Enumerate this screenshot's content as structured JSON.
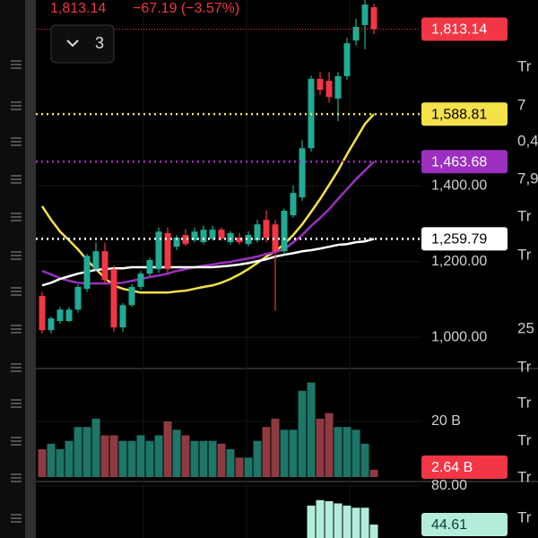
{
  "header": {
    "price": "1,813.14",
    "change": "−67.19 (−3.57%)"
  },
  "button": {
    "label": "3"
  },
  "side_labels": [
    "Tr",
    "7",
    "0,4",
    "7,9",
    "Tr",
    "Tr",
    "25",
    "Tr",
    "Tr",
    "Tr",
    "Tr",
    "Tr"
  ],
  "chart_data": [
    {
      "type": "candlestick",
      "up_color": "#22ab94",
      "down_color": "#f23645",
      "ylim": [
        920,
        1890
      ],
      "yticks": [
        {
          "value": 1000,
          "label": "1,000.00"
        },
        {
          "value": 1200,
          "label": "1,200.00"
        },
        {
          "value": 1400,
          "label": "1,400.00"
        }
      ],
      "open": [
        1109,
        1019,
        1043,
        1043,
        1073,
        1128,
        1180,
        1227,
        1180,
        1026,
        1085,
        1133,
        1168,
        1180,
        1275,
        1239,
        1270,
        1256,
        1251,
        1260,
        1284,
        1251,
        1263,
        1246,
        1256,
        1310,
        1298,
        1227,
        1322,
        1369,
        1499,
        1682,
        1677,
        1630,
        1689,
        1783,
        1824,
        1871
      ],
      "high": [
        1120,
        1055,
        1080,
        1080,
        1140,
        1220,
        1250,
        1250,
        1190,
        1090,
        1140,
        1175,
        1210,
        1290,
        1290,
        1270,
        1285,
        1290,
        1295,
        1295,
        1290,
        1280,
        1275,
        1280,
        1310,
        1335,
        1310,
        1340,
        1400,
        1520,
        1690,
        1700,
        1700,
        1700,
        1790,
        1840,
        1890,
        1880
      ],
      "low": [
        1010,
        1010,
        1035,
        1040,
        1065,
        1120,
        1175,
        1140,
        1015,
        1015,
        1080,
        1125,
        1160,
        1170,
        1170,
        1230,
        1240,
        1250,
        1245,
        1255,
        1255,
        1245,
        1245,
        1240,
        1250,
        1250,
        1070,
        1220,
        1315,
        1360,
        1490,
        1640,
        1620,
        1570,
        1680,
        1770,
        1760,
        1800
      ],
      "close": [
        1019,
        1050,
        1073,
        1073,
        1133,
        1215,
        1227,
        1151,
        1026,
        1085,
        1133,
        1168,
        1204,
        1279,
        1180,
        1263,
        1246,
        1279,
        1284,
        1284,
        1260,
        1275,
        1251,
        1270,
        1298,
        1263,
        1227,
        1334,
        1381,
        1499,
        1682,
        1653,
        1634,
        1689,
        1776,
        1819,
        1878,
        1813.14
      ],
      "value_labels": [
        null,
        null,
        null,
        null,
        null,
        null,
        null,
        null,
        null,
        null,
        null,
        null,
        null,
        null,
        null,
        null,
        null,
        null,
        null,
        null,
        null,
        null,
        null,
        null,
        null,
        null,
        null,
        null,
        null,
        null,
        null,
        null,
        null,
        null,
        null,
        null,
        null,
        "1,813.14"
      ],
      "overlays": [
        {
          "color": "#f5e14a",
          "label_text_color": "#000000",
          "values": [
            1346,
            1310,
            1279,
            1256,
            1232,
            1204,
            1180,
            1156,
            1137,
            1128,
            1123,
            1118,
            1118,
            1118,
            1118,
            1121,
            1123,
            1128,
            1133,
            1137,
            1144,
            1154,
            1166,
            1180,
            1196,
            1213,
            1227,
            1246,
            1270,
            1298,
            1331,
            1365,
            1402,
            1440,
            1483,
            1523,
            1563,
            1588.81
          ],
          "value_labels": [
            null,
            null,
            null,
            null,
            null,
            null,
            null,
            null,
            null,
            null,
            null,
            null,
            null,
            null,
            null,
            null,
            null,
            null,
            null,
            null,
            null,
            null,
            null,
            null,
            null,
            null,
            null,
            null,
            null,
            null,
            null,
            null,
            null,
            null,
            null,
            null,
            null,
            "1,588.81"
          ]
        },
        {
          "color": "#9c2fc0",
          "label_text_color": "#ffffff",
          "values": [
            1175,
            1166,
            1156,
            1149,
            1144,
            1142,
            1142,
            1142,
            1142,
            1144,
            1149,
            1154,
            1159,
            1163,
            1168,
            1175,
            1180,
            1185,
            1189,
            1192,
            1196,
            1199,
            1204,
            1208,
            1213,
            1220,
            1225,
            1232,
            1251,
            1270,
            1294,
            1315,
            1338,
            1365,
            1391,
            1417,
            1440,
            1463.68
          ],
          "value_labels": [
            null,
            null,
            null,
            null,
            null,
            null,
            null,
            null,
            null,
            null,
            null,
            null,
            null,
            null,
            null,
            null,
            null,
            null,
            null,
            null,
            null,
            null,
            null,
            null,
            null,
            null,
            null,
            null,
            null,
            null,
            null,
            null,
            null,
            null,
            null,
            null,
            null,
            "1,463.68"
          ]
        },
        {
          "color": "#ffffff",
          "label_text_color": "#000000",
          "values": [
            1137,
            1144,
            1154,
            1161,
            1168,
            1173,
            1178,
            1180,
            1182,
            1182,
            1185,
            1185,
            1185,
            1185,
            1185,
            1185,
            1185,
            1185,
            1185,
            1185,
            1187,
            1189,
            1192,
            1196,
            1201,
            1206,
            1213,
            1218,
            1222,
            1227,
            1230,
            1234,
            1239,
            1244,
            1246,
            1251,
            1253,
            1259.79
          ],
          "value_labels": [
            null,
            null,
            null,
            null,
            null,
            null,
            null,
            null,
            null,
            null,
            null,
            null,
            null,
            null,
            null,
            null,
            null,
            null,
            null,
            null,
            null,
            null,
            null,
            null,
            null,
            null,
            null,
            null,
            null,
            null,
            null,
            null,
            null,
            null,
            null,
            null,
            null,
            "1,259.79"
          ]
        }
      ]
    },
    {
      "type": "bar",
      "up_color": "#1d7668",
      "down_color": "#8f3a41",
      "label_color": "#f23645",
      "ylim": [
        0,
        38.7
      ],
      "yticks": [
        {
          "value": 20,
          "label": "20 B"
        }
      ],
      "values": [
        10,
        12,
        10,
        13,
        18,
        18,
        21,
        15,
        15,
        13,
        13,
        15,
        13,
        15,
        20,
        17,
        15,
        13,
        13,
        13,
        12,
        10,
        7,
        7,
        13,
        18,
        21,
        17,
        17,
        31,
        34,
        21,
        23,
        18,
        18,
        17,
        12,
        2.64
      ],
      "value_labels": [
        null,
        null,
        null,
        null,
        null,
        null,
        null,
        null,
        null,
        null,
        null,
        null,
        null,
        null,
        null,
        null,
        null,
        null,
        null,
        null,
        null,
        null,
        null,
        null,
        null,
        null,
        null,
        null,
        null,
        null,
        null,
        null,
        null,
        null,
        null,
        null,
        null,
        "2.64 B"
      ]
    },
    {
      "type": "bar",
      "color": "#b4ecdc",
      "label_color": "#b4ecdc",
      "ylim": [
        32.3,
        81.6
      ],
      "yticks": [
        {
          "value": 80,
          "label": "80.00"
        }
      ],
      "values": [
        null,
        null,
        null,
        null,
        null,
        null,
        null,
        null,
        null,
        null,
        null,
        null,
        null,
        null,
        null,
        null,
        null,
        null,
        null,
        null,
        null,
        null,
        null,
        null,
        null,
        null,
        null,
        null,
        null,
        null,
        62,
        67,
        66,
        64,
        62,
        60,
        60,
        44.61
      ],
      "value_labels": [
        null,
        null,
        null,
        null,
        null,
        null,
        null,
        null,
        null,
        null,
        null,
        null,
        null,
        null,
        null,
        null,
        null,
        null,
        null,
        null,
        null,
        null,
        null,
        null,
        null,
        null,
        null,
        null,
        null,
        null,
        null,
        null,
        null,
        null,
        null,
        null,
        null,
        "44.61"
      ]
    }
  ]
}
